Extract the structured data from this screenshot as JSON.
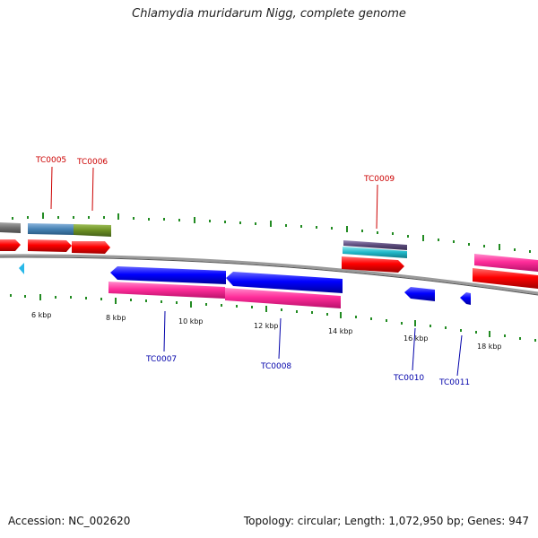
{
  "title": "Chlamydia muridarum Nigg, complete genome",
  "footer": {
    "accession": "Accession: NC_002620",
    "topology": "Topology: circular; Length: 1,072,950 bp; Genes: 947"
  },
  "colors": {
    "backbone": "#808080",
    "forward_gene": "#ff0000",
    "reverse_gene": "#0000ff",
    "pink_track": "#ff3399",
    "tick": "#228b22",
    "forward_label": "#cc0000",
    "reverse_label": "#0000aa"
  },
  "scale_labels": [
    "6 kbp",
    "8 kbp",
    "10 kbp",
    "12 kbp",
    "14 kbp",
    "16 kbp",
    "18 kbp"
  ],
  "gene_labels": {
    "forward": [
      "TC0005",
      "TC0006",
      "TC0009"
    ],
    "reverse": [
      "TC0007",
      "TC0008",
      "TC0010",
      "TC0011"
    ]
  }
}
